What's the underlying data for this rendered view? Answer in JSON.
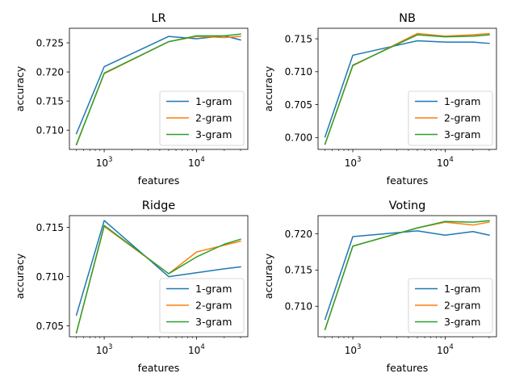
{
  "figure": {
    "background": "#ffffff"
  },
  "series_colors": {
    "1-gram": "#1f77b4",
    "2-gram": "#ff7f0e",
    "3-gram": "#2ca02c"
  },
  "chart_data": [
    {
      "type": "line",
      "title": "LR",
      "xlabel": "features",
      "ylabel": "accuracy",
      "xscale": "log",
      "xlim": [
        420,
        36000
      ],
      "ylim": [
        0.7067,
        0.7275
      ],
      "xticks": [
        {
          "value": 1000,
          "base": "10",
          "exp": "3"
        },
        {
          "value": 10000,
          "base": "10",
          "exp": "4"
        }
      ],
      "yticks": [
        {
          "value": 0.71,
          "label": "0.710"
        },
        {
          "value": 0.715,
          "label": "0.715"
        },
        {
          "value": 0.72,
          "label": "0.720"
        },
        {
          "value": 0.725,
          "label": "0.725"
        }
      ],
      "legend": "lower right",
      "x": [
        500,
        1000,
        5000,
        10000,
        20000,
        30000
      ],
      "series": [
        {
          "name": "1-gram",
          "values": [
            0.7094,
            0.7209,
            0.7261,
            0.7257,
            0.7262,
            0.7255
          ]
        },
        {
          "name": "2-gram",
          "values": [
            0.7076,
            0.7197,
            0.7252,
            0.7261,
            0.7259,
            0.7261
          ]
        },
        {
          "name": "3-gram",
          "values": [
            0.7075,
            0.7198,
            0.7252,
            0.7262,
            0.7262,
            0.7265
          ]
        }
      ]
    },
    {
      "type": "line",
      "title": "NB",
      "xlabel": "features",
      "ylabel": "accuracy",
      "xscale": "log",
      "xlim": [
        420,
        36000
      ],
      "ylim": [
        0.6982,
        0.7166
      ],
      "xticks": [
        {
          "value": 1000,
          "base": "10",
          "exp": "3"
        },
        {
          "value": 10000,
          "base": "10",
          "exp": "4"
        }
      ],
      "yticks": [
        {
          "value": 0.7,
          "label": "0.700"
        },
        {
          "value": 0.705,
          "label": "0.705"
        },
        {
          "value": 0.71,
          "label": "0.710"
        },
        {
          "value": 0.715,
          "label": "0.715"
        }
      ],
      "legend": "lower right",
      "x": [
        500,
        1000,
        5000,
        10000,
        20000,
        30000
      ],
      "series": [
        {
          "name": "1-gram",
          "values": [
            0.7001,
            0.7125,
            0.7147,
            0.7145,
            0.7145,
            0.7143
          ]
        },
        {
          "name": "2-gram",
          "values": [
            0.699,
            0.7109,
            0.7158,
            0.7154,
            0.7156,
            0.7158
          ]
        },
        {
          "name": "3-gram",
          "values": [
            0.699,
            0.711,
            0.7156,
            0.7153,
            0.7154,
            0.7156
          ]
        }
      ]
    },
    {
      "type": "line",
      "title": "Ridge",
      "xlabel": "features",
      "ylabel": "accuracy",
      "xscale": "log",
      "xlim": [
        420,
        36000
      ],
      "ylim": [
        0.7039,
        0.7162
      ],
      "xticks": [
        {
          "value": 1000,
          "base": "10",
          "exp": "3"
        },
        {
          "value": 10000,
          "base": "10",
          "exp": "4"
        }
      ],
      "yticks": [
        {
          "value": 0.705,
          "label": "0.705"
        },
        {
          "value": 0.71,
          "label": "0.710"
        },
        {
          "value": 0.715,
          "label": "0.715"
        }
      ],
      "legend": "lower right",
      "x": [
        500,
        1000,
        5000,
        10000,
        20000,
        30000
      ],
      "series": [
        {
          "name": "1-gram",
          "values": [
            0.7061,
            0.7157,
            0.71,
            0.7104,
            0.7108,
            0.711
          ]
        },
        {
          "name": "2-gram",
          "values": [
            0.7043,
            0.7151,
            0.7103,
            0.7125,
            0.7132,
            0.7136
          ]
        },
        {
          "name": "3-gram",
          "values": [
            0.7043,
            0.7152,
            0.7103,
            0.712,
            0.7133,
            0.7138
          ]
        }
      ]
    },
    {
      "type": "line",
      "title": "Voting",
      "xlabel": "features",
      "ylabel": "accuracy",
      "xscale": "log",
      "xlim": [
        420,
        36000
      ],
      "ylim": [
        0.7058,
        0.7225
      ],
      "xticks": [
        {
          "value": 1000,
          "base": "10",
          "exp": "3"
        },
        {
          "value": 10000,
          "base": "10",
          "exp": "4"
        }
      ],
      "yticks": [
        {
          "value": 0.71,
          "label": "0.710"
        },
        {
          "value": 0.715,
          "label": "0.715"
        },
        {
          "value": 0.72,
          "label": "0.720"
        }
      ],
      "legend": "lower right",
      "x": [
        500,
        1000,
        5000,
        10000,
        20000,
        30000
      ],
      "series": [
        {
          "name": "1-gram",
          "values": [
            0.7082,
            0.7196,
            0.7204,
            0.7198,
            0.7203,
            0.7198
          ]
        },
        {
          "name": "2-gram",
          "values": [
            0.7068,
            0.7183,
            0.7208,
            0.7216,
            0.7212,
            0.7216
          ]
        },
        {
          "name": "3-gram",
          "values": [
            0.7068,
            0.7183,
            0.7208,
            0.7217,
            0.7216,
            0.7218
          ]
        }
      ]
    }
  ]
}
